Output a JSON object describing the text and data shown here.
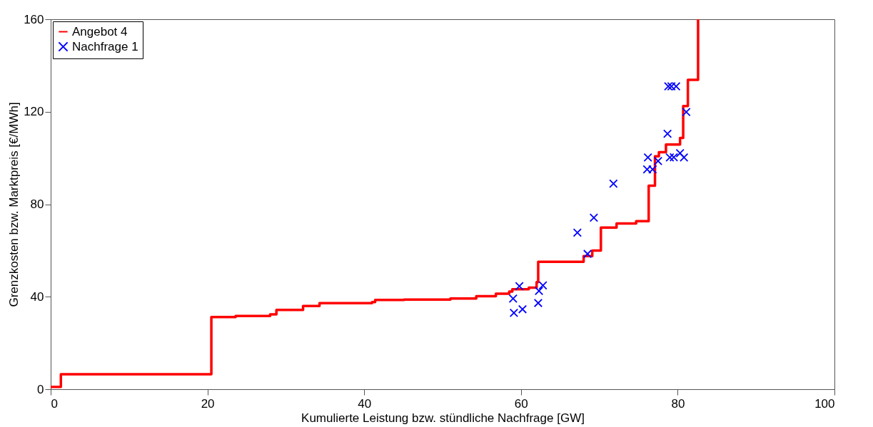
{
  "chart_data": {
    "type": "step",
    "xlabel": "Kumulierte Leistung bzw. stündliche Nachfrage [GW]",
    "ylabel": "Grenzkosten bzw. Marktpreis [€/MWh]",
    "xlim": [
      0,
      100
    ],
    "xticks": [
      0,
      20,
      40,
      60,
      80,
      100
    ],
    "ylim": [
      0,
      160
    ],
    "yticks": [
      0,
      40,
      80,
      120,
      160
    ],
    "grid": false,
    "legend": "top left",
    "series": [
      {
        "name": "Angebot 4",
        "color": "#ff0000",
        "marker": "none",
        "x": [
          0,
          1.3,
          20.5,
          23.6,
          28,
          28.8,
          32.2,
          34.3,
          41,
          41.4,
          45.1,
          51,
          54.3,
          56.8,
          58.5,
          58.9,
          61,
          62,
          62.2,
          68,
          69.1,
          70.2,
          72.2,
          74.7,
          76.3,
          77.1,
          77.6,
          78.5,
          80.3,
          80.7,
          81.3,
          82.6
        ],
        "values": [
          1,
          6.5,
          31.2,
          31.7,
          32.4,
          34.3,
          36,
          37.2,
          37.7,
          38.6,
          38.8,
          39.2,
          40.2,
          41.3,
          42.2,
          43.2,
          43.9,
          46.3,
          55.1,
          57.6,
          60,
          69.9,
          71.7,
          72.7,
          88,
          100.7,
          102.5,
          105.8,
          108.7,
          122.5,
          133.8,
          160
        ]
      },
      {
        "name": "Nachfrage 1",
        "type": "scatter",
        "color": "#0000ff",
        "marker": "cross",
        "x": [
          59,
          59.1,
          60.2,
          59.8,
          62.2,
          62.3,
          62.8,
          67.2,
          68.5,
          69.3,
          71.8,
          76.1,
          76.2,
          76.8,
          77.5,
          78.7,
          79,
          79.5,
          80.3,
          80.8,
          78.8,
          79.2,
          79.8,
          81.1
        ],
        "values": [
          39.2,
          33,
          34.6,
          44.6,
          37.3,
          42.5,
          44.9,
          67.7,
          58.5,
          74.2,
          88.9,
          95.1,
          100.2,
          95.1,
          98.7,
          110.5,
          100.2,
          100.3,
          102.1,
          100.2,
          131,
          131,
          131,
          119.9
        ]
      }
    ]
  }
}
